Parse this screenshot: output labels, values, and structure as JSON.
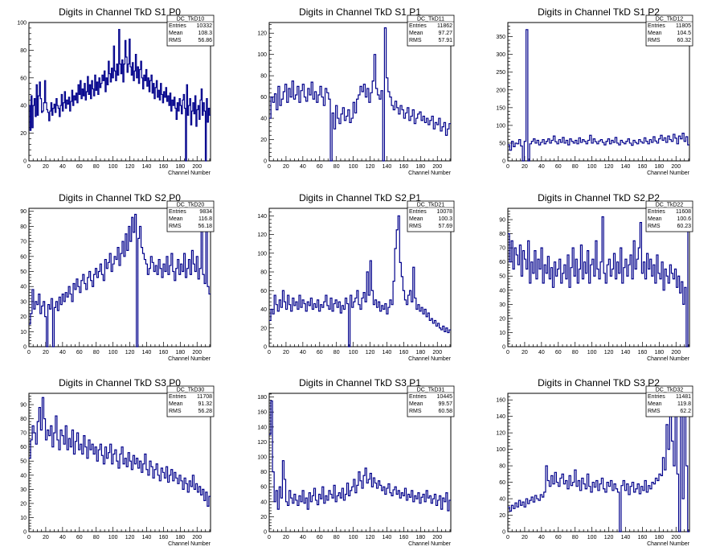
{
  "chart_data": [
    {
      "type": "line",
      "title": "Digits in Channel TkD S1 P0",
      "xlabel": "Channel Number",
      "xlim": [
        0,
        216
      ],
      "ylim": [
        0,
        100
      ],
      "xticks": [
        0,
        20,
        40,
        60,
        80,
        100,
        120,
        140,
        160,
        180,
        200
      ],
      "yticks": [
        0,
        20,
        40,
        60,
        80,
        100
      ],
      "stats": {
        "name": "DC_TkD10",
        "rows": [
          [
            "Entries",
            "10332"
          ],
          [
            "Mean",
            "108.3"
          ],
          [
            "RMS",
            "56.86"
          ]
        ]
      },
      "values": [
        40,
        22,
        47,
        24,
        40,
        45,
        32,
        55,
        33,
        47,
        57,
        45,
        35,
        36,
        42,
        58,
        42,
        37,
        35,
        29,
        36,
        42,
        33,
        38,
        41,
        35,
        45,
        40,
        38,
        32,
        40,
        48,
        36,
        42,
        50,
        38,
        44,
        41,
        46,
        36,
        43,
        51,
        40,
        47,
        44,
        49,
        42,
        55,
        48,
        58,
        45,
        52,
        47,
        56,
        44,
        50,
        61,
        48,
        55,
        45,
        58,
        52,
        47,
        62,
        51,
        57,
        48,
        60,
        53,
        56,
        62,
        58,
        65,
        50,
        60,
        55,
        72,
        63,
        57,
        67,
        60,
        83,
        65,
        58,
        70,
        62,
        95,
        70,
        63,
        73,
        57,
        70,
        87,
        75,
        64,
        70,
        88,
        68,
        62,
        71,
        58,
        65,
        77,
        60,
        68,
        56,
        66,
        72,
        60,
        52,
        62,
        58,
        66,
        54,
        60,
        50,
        58,
        62,
        49,
        56,
        45,
        53,
        58,
        46,
        51,
        44,
        56,
        48,
        42,
        50,
        46,
        53,
        43,
        47,
        40,
        49,
        36,
        44,
        40,
        46,
        38,
        30,
        42,
        36,
        45,
        40,
        34,
        44,
        48,
        38,
        0,
        55,
        33,
        40,
        45,
        26,
        36,
        42,
        34,
        47,
        25,
        37,
        40,
        30,
        44,
        52,
        33,
        42,
        36,
        0,
        45,
        28,
        38,
        33
      ],
      "color": "#00008b"
    },
    {
      "type": "line",
      "title": "Digits in Channel TkD S1 P1",
      "xlabel": "Channel Number",
      "xlim": [
        0,
        216
      ],
      "ylim": [
        0,
        130
      ],
      "xticks": [
        0,
        20,
        40,
        60,
        80,
        100,
        120,
        140,
        160,
        180,
        200
      ],
      "yticks": [
        0,
        20,
        40,
        60,
        80,
        100,
        120
      ],
      "stats": {
        "name": "DC_TkD11",
        "rows": [
          [
            "Entries",
            "11862"
          ],
          [
            "Mean",
            "97.27"
          ],
          [
            "RMS",
            "57.91"
          ]
        ]
      },
      "values": [
        40,
        60,
        55,
        63,
        48,
        70,
        52,
        58,
        65,
        72,
        55,
        68,
        60,
        75,
        58,
        62,
        70,
        55,
        66,
        72,
        60,
        56,
        68,
        62,
        74,
        58,
        65,
        55,
        62,
        70,
        60,
        52,
        68,
        64,
        58,
        0,
        45,
        30,
        52,
        40,
        35,
        44,
        50,
        38,
        42,
        48,
        36,
        40,
        55,
        45,
        58,
        62,
        70,
        65,
        72,
        60,
        68,
        55,
        64,
        75,
        100,
        68,
        62,
        58,
        66,
        0,
        125,
        78,
        65,
        60,
        52,
        48,
        56,
        50,
        44,
        52,
        48,
        40,
        45,
        50,
        38,
        42,
        48,
        35,
        40,
        44,
        46,
        38,
        42,
        36,
        40,
        34,
        38,
        42,
        30,
        36,
        34,
        40,
        28,
        32,
        36,
        24,
        30,
        35
      ],
      "color": "#00008b"
    },
    {
      "type": "line",
      "title": "Digits in Channel TkD S1 P2",
      "xlabel": "Channel Number",
      "xlim": [
        0,
        216
      ],
      "ylim": [
        0,
        390
      ],
      "xticks": [
        0,
        20,
        40,
        60,
        80,
        100,
        120,
        140,
        160,
        180,
        200
      ],
      "yticks": [
        0,
        50,
        100,
        150,
        200,
        250,
        300,
        350
      ],
      "stats": {
        "name": "DC_TkD12",
        "rows": [
          [
            "Entries",
            "11805"
          ],
          [
            "Mean",
            "104.5"
          ],
          [
            "RMS",
            "60.32"
          ]
        ]
      },
      "values": [
        45,
        30,
        55,
        40,
        50,
        48,
        60,
        42,
        0,
        55,
        370,
        0,
        48,
        55,
        62,
        50,
        58,
        45,
        52,
        60,
        48,
        55,
        62,
        50,
        58,
        70,
        54,
        48,
        60,
        52,
        66,
        50,
        58,
        45,
        62,
        55,
        50,
        58,
        48,
        65,
        52,
        60,
        55,
        48,
        58,
        72,
        50,
        62,
        54,
        48,
        56,
        60,
        52,
        45,
        55,
        62,
        48,
        58,
        52,
        66,
        50,
        45,
        58,
        52,
        48,
        55,
        62,
        50,
        44,
        58,
        52,
        48,
        60,
        54,
        50,
        65,
        55,
        48,
        60,
        52,
        68,
        56,
        50,
        62,
        72,
        58,
        65,
        52,
        70,
        60,
        55,
        75,
        64,
        48,
        70,
        62,
        78,
        55,
        68,
        45
      ],
      "color": "#00008b"
    },
    {
      "type": "line",
      "title": "Digits in Channel TkD S2 P0",
      "xlabel": "Channel Number",
      "xlim": [
        0,
        216
      ],
      "ylim": [
        0,
        92
      ],
      "xticks": [
        0,
        20,
        40,
        60,
        80,
        100,
        120,
        140,
        160,
        180,
        200
      ],
      "yticks": [
        0,
        10,
        20,
        30,
        40,
        50,
        60,
        70,
        80,
        90
      ],
      "stats": {
        "name": "DC_TkD20",
        "rows": [
          [
            "Entries",
            "9834"
          ],
          [
            "Mean",
            "116.8"
          ],
          [
            "RMS",
            "56.18"
          ]
        ]
      },
      "values": [
        15,
        22,
        38,
        25,
        30,
        28,
        35,
        22,
        27,
        30,
        20,
        0,
        28,
        25,
        32,
        0,
        26,
        30,
        24,
        33,
        28,
        35,
        30,
        36,
        33,
        40,
        35,
        30,
        42,
        38,
        45,
        40,
        36,
        44,
        48,
        42,
        38,
        46,
        50,
        44,
        40,
        48,
        52,
        46,
        50,
        55,
        48,
        44,
        58,
        52,
        56,
        62,
        50,
        55,
        60,
        58,
        66,
        54,
        62,
        70,
        60,
        75,
        64,
        80,
        70,
        86,
        76,
        88,
        0,
        72,
        80,
        66,
        62,
        58,
        55,
        48,
        52,
        60,
        56,
        50,
        54,
        48,
        58,
        52,
        46,
        55,
        50,
        60,
        48,
        54,
        62,
        50,
        44,
        52,
        58,
        48,
        55,
        50,
        62,
        46,
        52,
        58,
        48,
        64,
        55,
        50,
        60,
        45,
        52,
        80,
        48,
        42,
        90,
        40,
        35
      ],
      "color": "#00008b"
    },
    {
      "type": "line",
      "title": "Digits in Channel TkD S2 P1",
      "xlabel": "Channel Number",
      "xlim": [
        0,
        216
      ],
      "ylim": [
        0,
        148
      ],
      "xticks": [
        0,
        20,
        40,
        60,
        80,
        100,
        120,
        140,
        160,
        180,
        200
      ],
      "yticks": [
        0,
        20,
        40,
        60,
        80,
        100,
        120,
        140
      ],
      "stats": {
        "name": "DC_TkD21",
        "rows": [
          [
            "Entries",
            "10078"
          ],
          [
            "Mean",
            "100.3"
          ],
          [
            "RMS",
            "57.69"
          ]
        ]
      },
      "values": [
        28,
        40,
        35,
        55,
        45,
        38,
        50,
        42,
        60,
        48,
        40,
        55,
        45,
        38,
        52,
        44,
        48,
        40,
        55,
        42,
        50,
        46,
        38,
        48,
        44,
        52,
        40,
        46,
        42,
        50,
        38,
        45,
        42,
        48,
        55,
        44,
        40,
        52,
        38,
        46,
        50,
        42,
        48,
        36,
        44,
        40,
        52,
        46,
        0,
        55,
        42,
        48,
        52,
        60,
        45,
        40,
        52,
        58,
        48,
        80,
        55,
        92,
        60,
        45,
        50,
        42,
        48,
        38,
        44,
        40,
        46,
        35,
        42,
        50,
        45,
        70,
        105,
        125,
        140,
        90,
        75,
        60,
        50,
        45,
        55,
        60,
        48,
        85,
        52,
        40,
        45,
        38,
        42,
        35,
        40,
        32,
        36,
        28,
        30,
        25,
        28,
        22,
        25,
        20,
        18,
        22,
        16,
        20,
        15,
        18
      ],
      "color": "#00008b"
    },
    {
      "type": "line",
      "title": "Digits in Channel TkD S2 P2",
      "xlabel": "Channel Number",
      "xlim": [
        0,
        216
      ],
      "ylim": [
        0,
        98
      ],
      "xticks": [
        0,
        20,
        40,
        60,
        80,
        100,
        120,
        140,
        160,
        180,
        200
      ],
      "yticks": [
        0,
        10,
        20,
        30,
        40,
        50,
        60,
        70,
        80,
        90
      ],
      "stats": {
        "name": "DC_TkD22",
        "rows": [
          [
            "Entries",
            "11608"
          ],
          [
            "Mean",
            "100.6"
          ],
          [
            "RMS",
            "60.23"
          ]
        ]
      },
      "values": [
        80,
        60,
        75,
        55,
        70,
        65,
        58,
        72,
        50,
        68,
        62,
        55,
        75,
        45,
        60,
        52,
        68,
        48,
        62,
        55,
        70,
        45,
        58,
        52,
        64,
        48,
        56,
        42,
        60,
        50,
        55,
        62,
        45,
        52,
        58,
        48,
        65,
        42,
        56,
        70,
        50,
        62,
        45,
        55,
        72,
        48,
        60,
        52,
        68,
        45,
        58,
        62,
        50,
        75,
        55,
        48,
        60,
        92,
        52,
        45,
        58,
        62,
        50,
        55,
        66,
        48,
        60,
        52,
        70,
        45,
        56,
        62,
        50,
        58,
        65,
        48,
        75,
        55,
        62,
        70,
        88,
        52,
        60,
        48,
        66,
        55,
        62,
        50,
        58,
        45,
        65,
        52,
        48,
        60,
        40,
        55,
        50,
        45,
        58,
        52,
        48,
        55,
        42,
        50,
        38,
        46,
        30,
        42,
        0,
        82
      ],
      "color": "#00008b"
    },
    {
      "type": "line",
      "title": "Digits in Channel TkD S3 P0",
      "xlabel": "Channel Number",
      "xlim": [
        0,
        216
      ],
      "ylim": [
        0,
        98
      ],
      "xticks": [
        0,
        20,
        40,
        60,
        80,
        100,
        120,
        140,
        160,
        180,
        200
      ],
      "yticks": [
        0,
        10,
        20,
        30,
        40,
        50,
        60,
        70,
        80,
        90
      ],
      "stats": {
        "name": "DC_TkD30",
        "rows": [
          [
            "Entries",
            "11708"
          ],
          [
            "Mean",
            "91.32"
          ],
          [
            "RMS",
            "56.28"
          ]
        ]
      },
      "values": [
        52,
        65,
        75,
        70,
        62,
        78,
        88,
        72,
        95,
        80,
        65,
        72,
        68,
        75,
        60,
        70,
        82,
        65,
        58,
        72,
        68,
        62,
        75,
        58,
        66,
        60,
        72,
        55,
        64,
        70,
        58,
        62,
        55,
        68,
        60,
        52,
        65,
        58,
        62,
        55,
        60,
        50,
        58,
        62,
        54,
        48,
        60,
        52,
        56,
        62,
        48,
        55,
        58,
        50,
        45,
        55,
        60,
        48,
        52,
        46,
        56,
        50,
        44,
        54,
        48,
        52,
        45,
        50,
        42,
        48,
        55,
        44,
        40,
        50,
        46,
        38,
        44,
        48,
        40,
        36,
        45,
        42,
        38,
        46,
        35,
        40,
        44,
        36,
        42,
        38,
        34,
        40,
        36,
        30,
        38,
        34,
        28,
        36,
        32,
        40,
        30,
        34,
        28,
        32,
        26,
        30,
        22,
        28,
        18,
        25
      ],
      "color": "#00008b"
    },
    {
      "type": "line",
      "title": "Digits in Channel TkD S3 P1",
      "xlabel": "Channel Number",
      "xlim": [
        0,
        216
      ],
      "ylim": [
        0,
        185
      ],
      "xticks": [
        0,
        20,
        40,
        60,
        80,
        100,
        120,
        140,
        160,
        180,
        200
      ],
      "yticks": [
        0,
        20,
        40,
        60,
        80,
        100,
        120,
        140,
        160,
        180
      ],
      "stats": {
        "name": "DC_TkD31",
        "rows": [
          [
            "Entries",
            "10445"
          ],
          [
            "Mean",
            "99.57"
          ],
          [
            "RMS",
            "60.58"
          ]
        ]
      },
      "values": [
        130,
        175,
        80,
        40,
        55,
        30,
        60,
        45,
        95,
        70,
        40,
        35,
        55,
        45,
        38,
        50,
        42,
        35,
        48,
        40,
        55,
        38,
        45,
        30,
        52,
        40,
        48,
        58,
        42,
        36,
        50,
        44,
        60,
        38,
        48,
        42,
        55,
        50,
        45,
        62,
        40,
        48,
        52,
        45,
        58,
        42,
        50,
        65,
        48,
        55,
        60,
        70,
        52,
        62,
        80,
        68,
        58,
        75,
        85,
        65,
        70,
        78,
        60,
        72,
        65,
        58,
        68,
        62,
        55,
        60,
        50,
        58,
        64,
        52,
        48,
        56,
        60,
        50,
        55,
        45,
        52,
        48,
        58,
        42,
        50,
        46,
        55,
        40,
        48,
        44,
        52,
        38,
        46,
        50,
        40,
        55,
        45,
        48,
        38,
        44,
        50,
        35,
        42,
        48,
        30,
        45,
        40,
        52,
        28,
        42
      ],
      "color": "#00008b"
    },
    {
      "type": "line",
      "title": "Digits in Channel TkD S3 P2",
      "xlabel": "Channel Number",
      "xlim": [
        0,
        216
      ],
      "ylim": [
        0,
        168
      ],
      "xticks": [
        0,
        20,
        40,
        60,
        80,
        100,
        120,
        140,
        160,
        180,
        200
      ],
      "yticks": [
        0,
        20,
        40,
        60,
        80,
        100,
        120,
        140,
        160
      ],
      "stats": {
        "name": "DC_TkD32",
        "rows": [
          [
            "Entries",
            "11481"
          ],
          [
            "Mean",
            "119.8"
          ],
          [
            "RMS",
            "62.2"
          ]
        ]
      },
      "values": [
        30,
        25,
        32,
        28,
        35,
        30,
        38,
        32,
        36,
        30,
        40,
        34,
        38,
        42,
        36,
        44,
        40,
        38,
        45,
        42,
        48,
        80,
        62,
        55,
        68,
        58,
        72,
        60,
        55,
        65,
        70,
        58,
        62,
        52,
        68,
        56,
        60,
        75,
        55,
        62,
        50,
        65,
        58,
        52,
        70,
        55,
        48,
        60,
        54,
        62,
        50,
        58,
        65,
        52,
        48,
        60,
        55,
        62,
        50,
        58,
        52,
        48,
        0,
        56,
        62,
        50,
        58,
        45,
        55,
        60,
        48,
        52,
        58,
        46,
        55,
        50,
        62,
        48,
        56,
        52,
        60,
        58,
        65,
        62,
        70,
        68,
        90,
        75,
        130,
        100,
        140,
        110,
        80,
        160,
        70,
        0,
        150,
        40,
        160,
        80,
        0
      ],
      "color": "#00008b"
    }
  ]
}
